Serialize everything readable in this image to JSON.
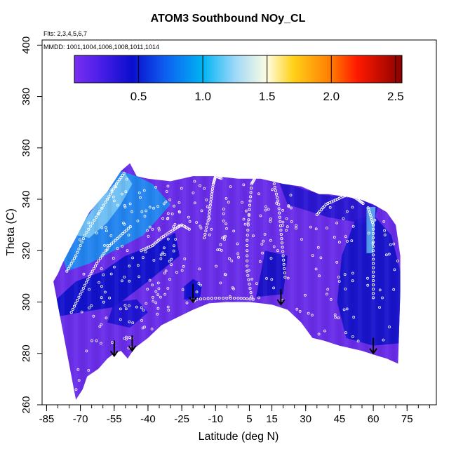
{
  "chart_data": {
    "type": "heatmap",
    "title": "ATOM3 Southbound NOy_CL",
    "annotations": {
      "flights": "Flts: 2,3,4,5,6,7",
      "dates": "MMDD: 1001,1004,1006,1008,1011,1014"
    },
    "xlabel": "Latitude (deg N)",
    "ylabel": "Theta (C)",
    "xlim": [
      -87,
      88
    ],
    "ylim": [
      260,
      402
    ],
    "x_ticks": [
      -85,
      -70,
      -55,
      -40,
      -25,
      -10,
      5,
      15,
      30,
      45,
      60,
      75
    ],
    "x_tick_labels": [
      "-85",
      "-70",
      "-55",
      "-40",
      "-25",
      "-10",
      "5",
      "15",
      "30",
      "45",
      "60",
      "75"
    ],
    "x_minor_step": 5,
    "y_ticks": [
      260,
      280,
      300,
      320,
      340,
      360,
      380,
      400
    ],
    "y_tick_labels": [
      "260",
      "280",
      "300",
      "320",
      "340",
      "360",
      "380",
      "400"
    ],
    "colorbar": {
      "range": [
        0,
        2.55
      ],
      "ticks": [
        0.5,
        1.0,
        1.5,
        2.0,
        2.5
      ],
      "tick_labels": [
        "0.5",
        "1.0",
        "1.5",
        "2.0",
        "2.5"
      ],
      "gradient_stops": [
        {
          "v": 0.0,
          "color": "#7a2ff0"
        },
        {
          "v": 0.2,
          "color": "#4a1ee8"
        },
        {
          "v": 0.45,
          "color": "#0b0dcc"
        },
        {
          "v": 0.7,
          "color": "#0d5df0"
        },
        {
          "v": 1.0,
          "color": "#00b4f4"
        },
        {
          "v": 1.25,
          "color": "#9dd8f9"
        },
        {
          "v": 1.5,
          "color": "#fffde0"
        },
        {
          "v": 1.7,
          "color": "#ffd21a"
        },
        {
          "v": 2.0,
          "color": "#ff7a00"
        },
        {
          "v": 2.2,
          "color": "#ff1a00"
        },
        {
          "v": 2.55,
          "color": "#8b0000"
        }
      ]
    },
    "field_base_color": "#6a2de8",
    "bottom_boundary": [
      {
        "x": -72,
        "y": 262
      },
      {
        "x": -69,
        "y": 266
      },
      {
        "x": -67,
        "y": 271
      },
      {
        "x": -62,
        "y": 274
      },
      {
        "x": -58,
        "y": 278
      },
      {
        "x": -55,
        "y": 280
      },
      {
        "x": -52,
        "y": 281
      },
      {
        "x": -49,
        "y": 278
      },
      {
        "x": -46,
        "y": 282
      },
      {
        "x": -40,
        "y": 286
      },
      {
        "x": -34,
        "y": 291
      },
      {
        "x": -27,
        "y": 294
      },
      {
        "x": -20,
        "y": 297
      },
      {
        "x": -13,
        "y": 299.5
      },
      {
        "x": -5,
        "y": 300
      },
      {
        "x": 5,
        "y": 300
      },
      {
        "x": 15,
        "y": 299
      },
      {
        "x": 22,
        "y": 297
      },
      {
        "x": 28,
        "y": 292
      },
      {
        "x": 33,
        "y": 286
      },
      {
        "x": 38,
        "y": 285
      },
      {
        "x": 45,
        "y": 283
      },
      {
        "x": 55,
        "y": 281
      },
      {
        "x": 62,
        "y": 279
      },
      {
        "x": 66,
        "y": 278
      },
      {
        "x": 71,
        "y": 276
      }
    ],
    "top_boundary": [
      {
        "x": -82,
        "y": 308
      },
      {
        "x": -80,
        "y": 311
      },
      {
        "x": -78,
        "y": 315
      },
      {
        "x": -75,
        "y": 320
      },
      {
        "x": -72,
        "y": 325
      },
      {
        "x": -69,
        "y": 330
      },
      {
        "x": -66,
        "y": 335
      },
      {
        "x": -62,
        "y": 339
      },
      {
        "x": -58,
        "y": 343
      },
      {
        "x": -52,
        "y": 351
      },
      {
        "x": -48,
        "y": 354
      },
      {
        "x": -45,
        "y": 349
      },
      {
        "x": -40,
        "y": 348
      },
      {
        "x": -30,
        "y": 347
      },
      {
        "x": -25,
        "y": 348
      },
      {
        "x": -20,
        "y": 349
      },
      {
        "x": -10,
        "y": 349
      },
      {
        "x": 0,
        "y": 348
      },
      {
        "x": 10,
        "y": 348
      },
      {
        "x": 20,
        "y": 346
      },
      {
        "x": 28,
        "y": 345
      },
      {
        "x": 36,
        "y": 342
      },
      {
        "x": 40,
        "y": 342
      },
      {
        "x": 48,
        "y": 341
      },
      {
        "x": 54,
        "y": 340
      },
      {
        "x": 60,
        "y": 338
      },
      {
        "x": 66,
        "y": 335
      },
      {
        "x": 70,
        "y": 330
      },
      {
        "x": 72,
        "y": 318
      },
      {
        "x": 72,
        "y": 304
      }
    ],
    "shading_regions": [
      {
        "name": "southern-upper-plume",
        "color": "#1d8ff0",
        "points": [
          {
            "x": -78,
            "y": 318
          },
          {
            "x": -70,
            "y": 330
          },
          {
            "x": -62,
            "y": 339
          },
          {
            "x": -52,
            "y": 351
          },
          {
            "x": -45,
            "y": 349
          },
          {
            "x": -38,
            "y": 346
          },
          {
            "x": -30,
            "y": 338
          },
          {
            "x": -42,
            "y": 326
          },
          {
            "x": -55,
            "y": 320
          },
          {
            "x": -66,
            "y": 315
          },
          {
            "x": -76,
            "y": 312
          }
        ]
      },
      {
        "name": "southern-upper-core",
        "color": "#78c6f5",
        "points": [
          {
            "x": -72,
            "y": 326
          },
          {
            "x": -64,
            "y": 337
          },
          {
            "x": -56,
            "y": 345
          },
          {
            "x": -50,
            "y": 350
          },
          {
            "x": -47,
            "y": 346
          },
          {
            "x": -52,
            "y": 338
          },
          {
            "x": -58,
            "y": 331
          },
          {
            "x": -66,
            "y": 325
          }
        ]
      },
      {
        "name": "southern-mid-band",
        "color": "#0a10c8",
        "points": [
          {
            "x": -82,
            "y": 300
          },
          {
            "x": -72,
            "y": 308
          },
          {
            "x": -60,
            "y": 312
          },
          {
            "x": -50,
            "y": 318
          },
          {
            "x": -38,
            "y": 322
          },
          {
            "x": -28,
            "y": 327
          },
          {
            "x": -26,
            "y": 318
          },
          {
            "x": -40,
            "y": 308
          },
          {
            "x": -55,
            "y": 298
          },
          {
            "x": -70,
            "y": 296
          },
          {
            "x": -82,
            "y": 294
          }
        ]
      },
      {
        "name": "southern-lower-band",
        "color": "#1a12d0",
        "points": [
          {
            "x": -58,
            "y": 292
          },
          {
            "x": -48,
            "y": 290
          },
          {
            "x": -40,
            "y": 296
          },
          {
            "x": -45,
            "y": 301
          },
          {
            "x": -55,
            "y": 300
          }
        ]
      },
      {
        "name": "equator-pocket",
        "color": "#0b0dcc",
        "points": [
          {
            "x": -24,
            "y": 301
          },
          {
            "x": -17,
            "y": 301
          },
          {
            "x": -16,
            "y": 307
          },
          {
            "x": -20,
            "y": 309
          },
          {
            "x": -24,
            "y": 306
          }
        ]
      },
      {
        "name": "northern-right-band",
        "color": "#1213c8",
        "points": [
          {
            "x": 48,
            "y": 286
          },
          {
            "x": 60,
            "y": 283
          },
          {
            "x": 72,
            "y": 284
          },
          {
            "x": 72,
            "y": 312
          },
          {
            "x": 68,
            "y": 326
          },
          {
            "x": 60,
            "y": 334
          },
          {
            "x": 52,
            "y": 332
          },
          {
            "x": 46,
            "y": 318
          },
          {
            "x": 44,
            "y": 300
          }
        ]
      },
      {
        "name": "northern-top-strip",
        "color": "#2515cf",
        "points": [
          {
            "x": 18,
            "y": 347
          },
          {
            "x": 36,
            "y": 342
          },
          {
            "x": 54,
            "y": 340
          },
          {
            "x": 62,
            "y": 337
          },
          {
            "x": 60,
            "y": 330
          },
          {
            "x": 40,
            "y": 333
          },
          {
            "x": 22,
            "y": 338
          }
        ]
      },
      {
        "name": "northern-light-column",
        "color": "#5aa8f2",
        "points": [
          {
            "x": 57,
            "y": 319
          },
          {
            "x": 60,
            "y": 319
          },
          {
            "x": 61,
            "y": 337
          },
          {
            "x": 57,
            "y": 337
          }
        ]
      },
      {
        "name": "central-dark-patch",
        "color": "#1310c4",
        "points": [
          {
            "x": 8,
            "y": 302
          },
          {
            "x": 20,
            "y": 303
          },
          {
            "x": 22,
            "y": 318
          },
          {
            "x": 12,
            "y": 320
          }
        ]
      }
    ],
    "flight_tracks": [
      {
        "name": "track-southern-A",
        "points": [
          {
            "x": -76,
            "y": 312
          },
          {
            "x": -72,
            "y": 318
          },
          {
            "x": -68,
            "y": 326
          },
          {
            "x": -63,
            "y": 333
          },
          {
            "x": -58,
            "y": 340
          },
          {
            "x": -54,
            "y": 346
          },
          {
            "x": -50,
            "y": 351
          }
        ]
      },
      {
        "name": "track-southern-B",
        "points": [
          {
            "x": -74,
            "y": 296
          },
          {
            "x": -70,
            "y": 303
          },
          {
            "x": -66,
            "y": 310
          },
          {
            "x": -62,
            "y": 316
          },
          {
            "x": -57,
            "y": 322
          },
          {
            "x": -52,
            "y": 326
          },
          {
            "x": -47,
            "y": 330
          }
        ]
      },
      {
        "name": "track-south-tropics",
        "points": [
          {
            "x": -43,
            "y": 320
          },
          {
            "x": -38,
            "y": 322
          },
          {
            "x": -34,
            "y": 325
          },
          {
            "x": -29,
            "y": 328
          },
          {
            "x": -25,
            "y": 330
          },
          {
            "x": -21,
            "y": 328
          }
        ]
      },
      {
        "name": "track-equator-climb",
        "points": [
          {
            "x": -15,
            "y": 325
          },
          {
            "x": -13,
            "y": 333
          },
          {
            "x": -12,
            "y": 340
          },
          {
            "x": -11,
            "y": 346
          },
          {
            "x": -10,
            "y": 349
          },
          {
            "x": -7,
            "y": 348
          }
        ]
      },
      {
        "name": "track-n-tropics",
        "points": [
          {
            "x": 6,
            "y": 302
          },
          {
            "x": 4,
            "y": 312
          },
          {
            "x": 4,
            "y": 324
          },
          {
            "x": 5,
            "y": 336
          },
          {
            "x": 6,
            "y": 346
          },
          {
            "x": 8,
            "y": 349
          }
        ]
      },
      {
        "name": "track-n-subtropics",
        "points": [
          {
            "x": 16,
            "y": 346
          },
          {
            "x": 18,
            "y": 338
          },
          {
            "x": 19,
            "y": 328
          },
          {
            "x": 20,
            "y": 318
          },
          {
            "x": 21,
            "y": 308
          }
        ]
      },
      {
        "name": "track-n-midlat",
        "points": [
          {
            "x": 35,
            "y": 334
          },
          {
            "x": 39,
            "y": 338
          },
          {
            "x": 44,
            "y": 340
          },
          {
            "x": 49,
            "y": 342
          },
          {
            "x": 53,
            "y": 340
          },
          {
            "x": 56,
            "y": 338
          }
        ]
      },
      {
        "name": "track-n-high",
        "points": [
          {
            "x": 58,
            "y": 336
          },
          {
            "x": 60,
            "y": 330
          },
          {
            "x": 60,
            "y": 320
          },
          {
            "x": 60,
            "y": 310
          },
          {
            "x": 60,
            "y": 300
          }
        ]
      },
      {
        "name": "track-equator-low",
        "points": [
          {
            "x": -20,
            "y": 301
          },
          {
            "x": -10,
            "y": 301.5
          },
          {
            "x": 0,
            "y": 301.5
          },
          {
            "x": 8,
            "y": 301
          }
        ]
      }
    ],
    "scatter_seed": 37,
    "scatter_count": 330,
    "profile_markers": [
      {
        "x": -55,
        "y": 285,
        "length": 6
      },
      {
        "x": -47,
        "y": 287,
        "length": 6
      },
      {
        "x": -20,
        "y": 307,
        "length": 7
      },
      {
        "x": 19,
        "y": 305,
        "length": 6
      },
      {
        "x": 60,
        "y": 286,
        "length": 6
      }
    ]
  }
}
